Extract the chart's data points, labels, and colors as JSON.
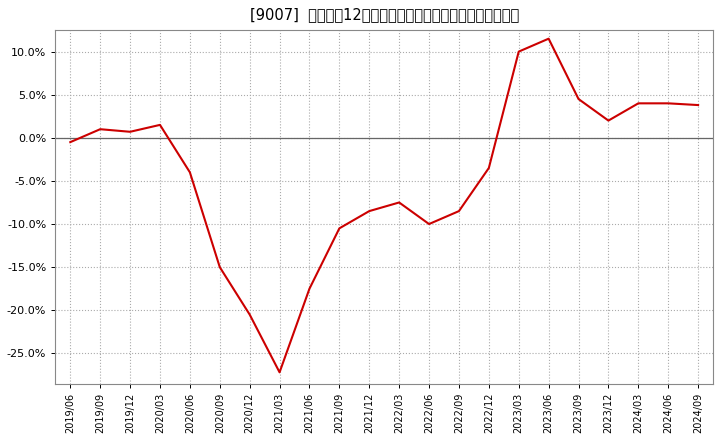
{
  "title": "[9007]  売上高の12か月移動合計の対前年同期増減率の推移",
  "line_color": "#cc0000",
  "bg_color": "#ffffff",
  "plot_bg_color": "#ffffff",
  "grid_color": "#aaaaaa",
  "ylim": [
    -0.285,
    0.125
  ],
  "yticks": [
    -0.25,
    -0.2,
    -0.15,
    -0.1,
    -0.05,
    0.0,
    0.05,
    0.1
  ],
  "dates": [
    "2019/06",
    "2019/09",
    "2019/12",
    "2020/03",
    "2020/06",
    "2020/09",
    "2020/12",
    "2021/03",
    "2021/06",
    "2021/09",
    "2021/12",
    "2022/03",
    "2022/06",
    "2022/09",
    "2022/12",
    "2023/03",
    "2023/06",
    "2023/09",
    "2023/12",
    "2024/03",
    "2024/06",
    "2024/09"
  ],
  "values": [
    -0.005,
    0.01,
    0.007,
    0.015,
    -0.04,
    -0.15,
    -0.205,
    -0.272,
    -0.175,
    -0.105,
    -0.085,
    -0.075,
    -0.1,
    -0.085,
    -0.035,
    0.1,
    0.115,
    0.045,
    0.02,
    0.04,
    0.04,
    0.038
  ]
}
